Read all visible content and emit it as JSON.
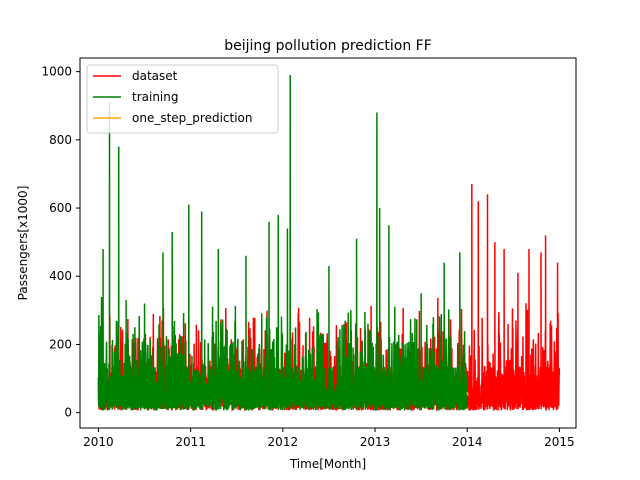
{
  "chart_data": {
    "type": "line",
    "title": "beijing pollution prediction FF",
    "xlabel": "Time[Month]",
    "ylabel": "Passengers[x1000]",
    "xlim": [
      2009.8,
      2015.18
    ],
    "ylim": [
      -45,
      1040
    ],
    "x_ticks": [
      2010,
      2011,
      2012,
      2013,
      2014,
      2015
    ],
    "x_tick_labels": [
      "2010",
      "2011",
      "2012",
      "2013",
      "2014",
      "2015"
    ],
    "y_ticks": [
      0,
      200,
      400,
      600,
      800,
      1000
    ],
    "y_tick_labels": [
      "0",
      "200",
      "400",
      "600",
      "800",
      "1000"
    ],
    "grid": false,
    "legend_position": "top-left",
    "series": [
      {
        "name": "dataset",
        "color": "#ff0000",
        "x_range": [
          2010.0,
          2015.0
        ],
        "peaks": [
          [
            2014.05,
            670
          ],
          [
            2014.12,
            620
          ],
          [
            2014.22,
            640
          ],
          [
            2014.3,
            500
          ],
          [
            2014.4,
            480
          ],
          [
            2014.55,
            410
          ],
          [
            2014.67,
            480
          ],
          [
            2014.8,
            470
          ],
          [
            2014.85,
            520
          ],
          [
            2014.98,
            440
          ]
        ]
      },
      {
        "name": "training",
        "color": "#008000",
        "x_range": [
          2010.0,
          2014.0
        ],
        "peaks": [
          [
            2010.05,
            480
          ],
          [
            2010.12,
            910
          ],
          [
            2010.22,
            780
          ],
          [
            2010.3,
            330
          ],
          [
            2010.5,
            320
          ],
          [
            2010.7,
            470
          ],
          [
            2010.8,
            530
          ],
          [
            2010.98,
            610
          ],
          [
            2011.12,
            590
          ],
          [
            2011.3,
            480
          ],
          [
            2011.6,
            460
          ],
          [
            2011.85,
            560
          ],
          [
            2011.95,
            580
          ],
          [
            2012.05,
            540
          ],
          [
            2012.08,
            990
          ],
          [
            2012.5,
            430
          ],
          [
            2012.8,
            510
          ],
          [
            2013.02,
            880
          ],
          [
            2013.05,
            600
          ],
          [
            2013.15,
            550
          ],
          [
            2013.5,
            350
          ],
          [
            2013.75,
            440
          ],
          [
            2013.92,
            470
          ]
        ]
      },
      {
        "name": "one_step_prediction",
        "color": "#ffa500",
        "x_range": [
          2014.0,
          2014.01
        ],
        "peaks": [
          [
            2014.0,
            60
          ]
        ]
      }
    ]
  }
}
